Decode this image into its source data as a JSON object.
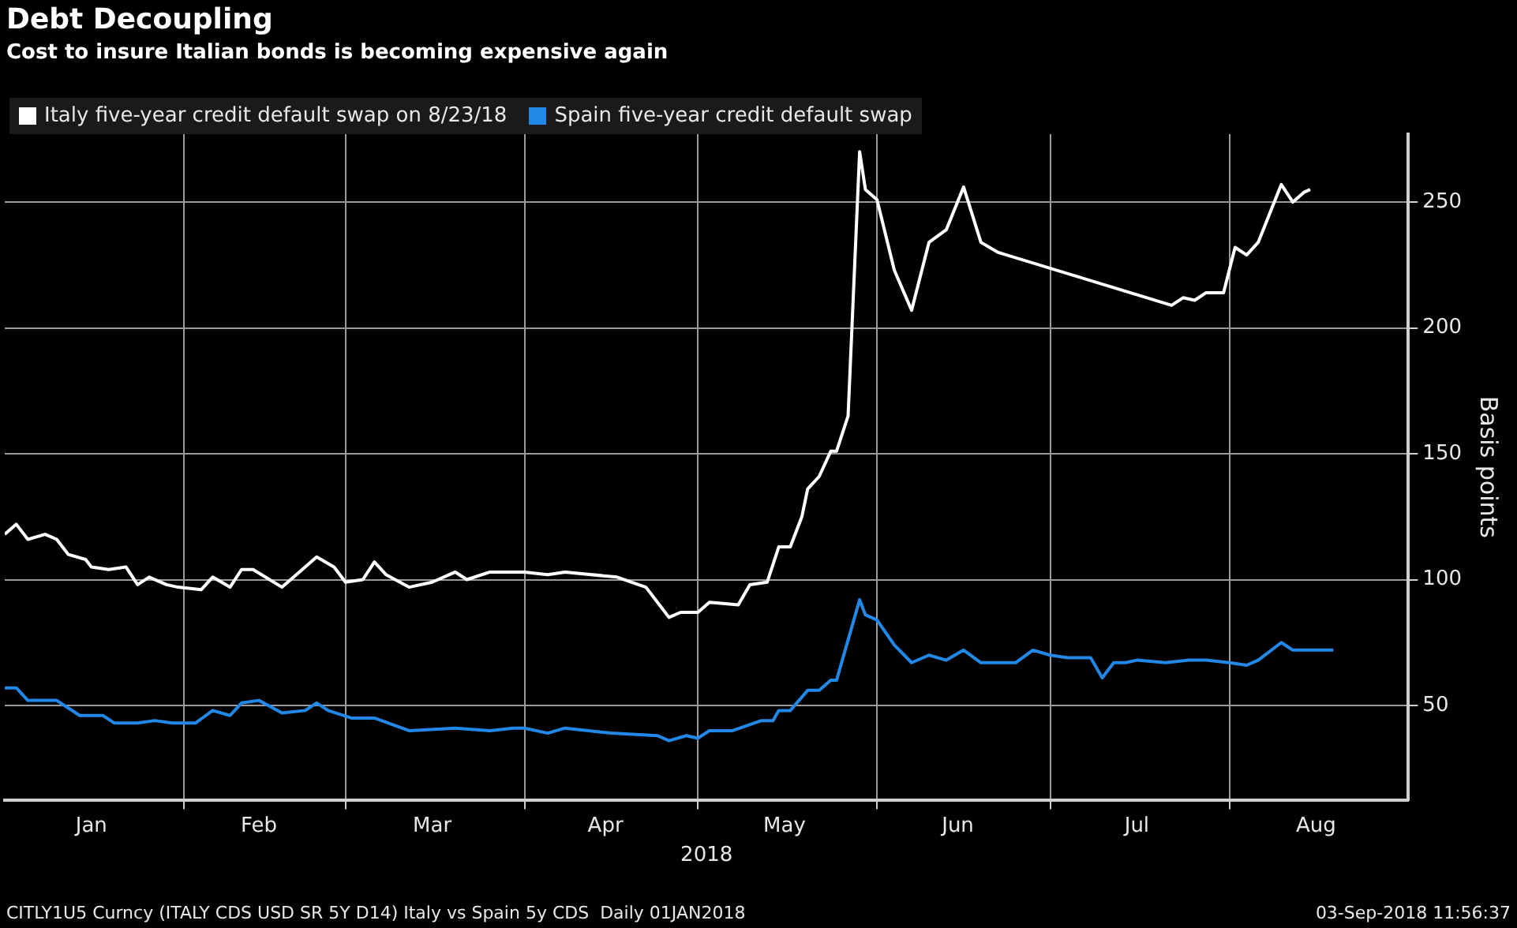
{
  "chart_data": {
    "type": "line",
    "title": "Debt Decoupling",
    "subtitle": "Cost to insure Italian bonds is becoming expensive again",
    "xlabel": "2018",
    "ylabel": "Basis points",
    "xlim": [
      "2018-01-01",
      "2018-09-01"
    ],
    "xticks": [
      {
        "value": "2018-01-16",
        "label": "Jan"
      },
      {
        "value": "2018-02-01",
        "label": null
      },
      {
        "value": "2018-02-14",
        "label": "Feb"
      },
      {
        "value": "2018-03-01",
        "label": null
      },
      {
        "value": "2018-03-16",
        "label": "Mar"
      },
      {
        "value": "2018-04-01",
        "label": null
      },
      {
        "value": "2018-04-15",
        "label": "Apr"
      },
      {
        "value": "2018-05-01",
        "label": null
      },
      {
        "value": "2018-05-16",
        "label": "May"
      },
      {
        "value": "2018-06-01",
        "label": null
      },
      {
        "value": "2018-06-15",
        "label": "Jun"
      },
      {
        "value": "2018-07-01",
        "label": null
      },
      {
        "value": "2018-07-16",
        "label": "Jul"
      },
      {
        "value": "2018-08-01",
        "label": null
      },
      {
        "value": "2018-08-16",
        "label": "Aug"
      }
    ],
    "ylim": [
      12.5,
      277
    ],
    "yticks": [
      50,
      100,
      150,
      200,
      250
    ],
    "grid": true,
    "legend": "top left",
    "series": [
      {
        "name": "Italy five-year credit default swap on 8/23/18",
        "color": "#ffffff",
        "x": [
          "2018-01-01",
          "2018-01-03",
          "2018-01-05",
          "2018-01-08",
          "2018-01-10",
          "2018-01-12",
          "2018-01-15",
          "2018-01-16",
          "2018-01-19",
          "2018-01-22",
          "2018-01-24",
          "2018-01-26",
          "2018-01-29",
          "2018-01-31",
          "2018-02-04",
          "2018-02-06",
          "2018-02-09",
          "2018-02-11",
          "2018-02-13",
          "2018-02-18",
          "2018-02-21",
          "2018-02-24",
          "2018-02-27",
          "2018-03-01",
          "2018-03-04",
          "2018-03-06",
          "2018-03-08",
          "2018-03-12",
          "2018-03-16",
          "2018-03-20",
          "2018-03-22",
          "2018-03-26",
          "2018-04-01",
          "2018-04-05",
          "2018-04-08",
          "2018-04-17",
          "2018-04-22",
          "2018-04-26",
          "2018-04-28",
          "2018-05-01",
          "2018-05-03",
          "2018-05-08",
          "2018-05-10",
          "2018-05-13",
          "2018-05-15",
          "2018-05-17",
          "2018-05-19",
          "2018-05-20",
          "2018-05-22",
          "2018-05-24",
          "2018-05-25",
          "2018-05-27",
          "2018-05-29",
          "2018-05-30",
          "2018-06-01",
          "2018-06-04",
          "2018-06-07",
          "2018-06-10",
          "2018-06-13",
          "2018-06-16",
          "2018-06-19",
          "2018-06-22",
          "2018-07-22",
          "2018-07-24",
          "2018-07-26",
          "2018-07-28",
          "2018-07-31",
          "2018-08-02",
          "2018-08-04",
          "2018-08-06",
          "2018-08-10",
          "2018-08-12",
          "2018-08-14",
          "2018-08-15"
        ],
        "values": [
          118,
          122,
          116,
          118,
          116,
          110,
          108,
          105,
          104,
          105,
          98,
          101,
          98,
          97,
          96,
          101,
          97,
          104,
          104,
          97,
          103,
          109,
          105,
          99,
          100,
          107,
          102,
          97,
          99,
          103,
          100,
          103,
          103,
          102,
          103,
          101,
          97,
          85,
          87,
          87,
          91,
          90,
          98,
          99,
          113,
          113,
          125,
          136,
          141,
          151,
          151,
          165,
          270,
          255,
          251,
          223,
          207,
          234,
          239,
          256,
          234,
          230,
          209,
          212,
          211,
          214,
          214,
          232,
          229,
          234,
          257,
          250,
          254,
          255
        ]
      },
      {
        "name": "Spain five-year credit default swap",
        "color": "#2288e8",
        "x": [
          "2018-01-01",
          "2018-01-03",
          "2018-01-05",
          "2018-01-10",
          "2018-01-14",
          "2018-01-18",
          "2018-01-20",
          "2018-01-24",
          "2018-01-27",
          "2018-01-30",
          "2018-02-03",
          "2018-02-06",
          "2018-02-09",
          "2018-02-11",
          "2018-02-14",
          "2018-02-18",
          "2018-02-22",
          "2018-02-24",
          "2018-02-26",
          "2018-03-02",
          "2018-03-06",
          "2018-03-12",
          "2018-03-20",
          "2018-03-26",
          "2018-03-30",
          "2018-04-01",
          "2018-04-05",
          "2018-04-08",
          "2018-04-16",
          "2018-04-24",
          "2018-04-26",
          "2018-04-29",
          "2018-05-01",
          "2018-05-03",
          "2018-05-07",
          "2018-05-12",
          "2018-05-14",
          "2018-05-15",
          "2018-05-17",
          "2018-05-20",
          "2018-05-22",
          "2018-05-24",
          "2018-05-25",
          "2018-05-29",
          "2018-05-30",
          "2018-06-01",
          "2018-06-04",
          "2018-06-07",
          "2018-06-10",
          "2018-06-13",
          "2018-06-16",
          "2018-06-19",
          "2018-06-22",
          "2018-06-25",
          "2018-06-28",
          "2018-07-01",
          "2018-07-04",
          "2018-07-08",
          "2018-07-10",
          "2018-07-12",
          "2018-07-14",
          "2018-07-16",
          "2018-07-21",
          "2018-07-25",
          "2018-07-28",
          "2018-08-01",
          "2018-08-04",
          "2018-08-06",
          "2018-08-10",
          "2018-08-12",
          "2018-08-19"
        ],
        "values": [
          57,
          57,
          52,
          52,
          46,
          46,
          43,
          43,
          44,
          43,
          43,
          48,
          46,
          51,
          52,
          47,
          48,
          51,
          48,
          45,
          45,
          40,
          41,
          40,
          41,
          41,
          39,
          41,
          39,
          38,
          36,
          38,
          37,
          40,
          40,
          44,
          44,
          48,
          48,
          56,
          56,
          60,
          60,
          92,
          86,
          84,
          74,
          67,
          70,
          68,
          72,
          67,
          67,
          67,
          72,
          70,
          69,
          69,
          61,
          67,
          67,
          68,
          67,
          68,
          68,
          67,
          66,
          68,
          75,
          72,
          72
        ]
      }
    ],
    "annotations": [
      "CITLY1U5 Curncy (ITALY CDS USD SR 5Y D14) Italy vs Spain 5y CDS  Daily 01JAN2018",
      "03-Sep-2018 11:56:37"
    ]
  }
}
